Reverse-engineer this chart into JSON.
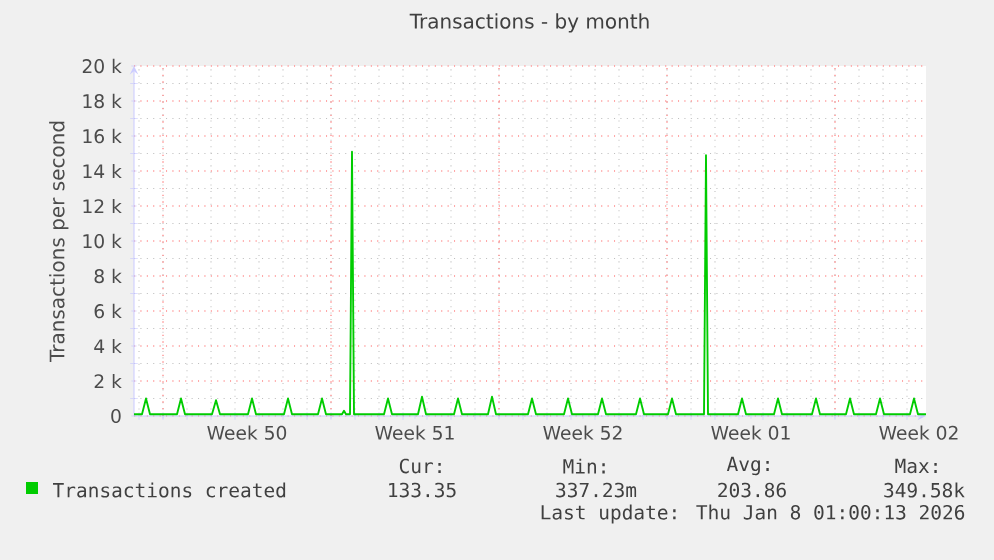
{
  "chart_data": {
    "type": "line",
    "title": "Transactions - by month",
    "ylabel": "Transactions per second",
    "xlim": [
      "2025-12-06T19:00",
      "2026-01-08T19:00"
    ],
    "xticks": [
      {
        "value": "2025-12-08",
        "label": null
      },
      {
        "value": "2025-12-11T12:00",
        "label": "Week 50"
      },
      {
        "value": "2025-12-15",
        "label": null
      },
      {
        "value": "2025-12-18T12:00",
        "label": "Week 51"
      },
      {
        "value": "2025-12-22",
        "label": null
      },
      {
        "value": "2025-12-25T12:00",
        "label": "Week 52"
      },
      {
        "value": "2025-12-29",
        "label": null
      },
      {
        "value": "2026-01-01T12:00",
        "label": "Week 01"
      },
      {
        "value": "2026-01-05",
        "label": null
      },
      {
        "value": "2026-01-08T12:00",
        "label": "Week 02"
      }
    ],
    "ylim": [
      0,
      20000
    ],
    "yticks": [
      0,
      {
        "value": 2000,
        "label": "2 k"
      },
      {
        "value": 4000,
        "label": "4 k"
      },
      {
        "value": 6000,
        "label": "6 k"
      },
      {
        "value": 8000,
        "label": "8 k"
      },
      {
        "value": 10000,
        "label": "10 k"
      },
      {
        "value": 12000,
        "label": "12 k"
      },
      {
        "value": 14000,
        "label": "14 k"
      },
      {
        "value": 16000,
        "label": "16 k"
      },
      {
        "value": 18000,
        "label": "18 k"
      },
      {
        "value": 20000,
        "label": "20 k"
      }
    ],
    "grid": true,
    "legend": "bottom",
    "series": [
      {
        "name": "Transactions created",
        "color": "#00cc00",
        "x": [
          "2025-12-06T19:00",
          "2025-12-07T03:00",
          "2025-12-07T07:00",
          "2025-12-07T11:00",
          "2025-12-08T14:00",
          "2025-12-08T18:00",
          "2025-12-08T22:00",
          "2025-12-10T01:00",
          "2025-12-10T05:00",
          "2025-12-10T09:00",
          "2025-12-11T13:00",
          "2025-12-11T17:00",
          "2025-12-11T21:00",
          "2025-12-13T01:00",
          "2025-12-13T05:00",
          "2025-12-13T09:00",
          "2025-12-14T11:00",
          "2025-12-14T15:00",
          "2025-12-14T19:00",
          "2025-12-15T11:00",
          "2025-12-15T13:00",
          "2025-12-15T15:00",
          "2025-12-15T19:00",
          "2025-12-15T21:00",
          "2025-12-15T23:00",
          "2025-12-17T05:00",
          "2025-12-17T09:00",
          "2025-12-17T13:00",
          "2025-12-18T15:00",
          "2025-12-18T19:00",
          "2025-12-18T23:00",
          "2025-12-20T03:00",
          "2025-12-20T07:00",
          "2025-12-20T11:00",
          "2025-12-21T13:00",
          "2025-12-21T17:00",
          "2025-12-21T21:00",
          "2025-12-23T05:00",
          "2025-12-23T09:00",
          "2025-12-23T13:00",
          "2025-12-24T17:00",
          "2025-12-24T21:00",
          "2025-12-25T01:00",
          "2025-12-26T03:00",
          "2025-12-26T07:00",
          "2025-12-26T11:00",
          "2025-12-27T17:00",
          "2025-12-27T21:00",
          "2025-12-28T01:00",
          "2025-12-29T01:00",
          "2025-12-29T05:00",
          "2025-12-29T09:00",
          "2025-12-30T13:00",
          "2025-12-30T15:00",
          "2025-12-30T17:00",
          "2025-12-31T23:00",
          "2026-01-01T03:00",
          "2026-01-01T07:00",
          "2026-01-02T11:00",
          "2026-01-02T15:00",
          "2026-01-02T19:00",
          "2026-01-04T01:00",
          "2026-01-04T05:00",
          "2026-01-04T09:00",
          "2026-01-05T11:00",
          "2026-01-05T15:00",
          "2026-01-05T19:00",
          "2026-01-06T17:00",
          "2026-01-06T21:00",
          "2026-01-07T01:00",
          "2026-01-08T03:00",
          "2026-01-08T07:00",
          "2026-01-08T11:00",
          "2026-01-08T19:00"
        ],
        "values": [
          100,
          100,
          1000,
          100,
          100,
          1000,
          100,
          100,
          900,
          100,
          100,
          1000,
          100,
          100,
          1000,
          100,
          100,
          1000,
          100,
          100,
          300,
          100,
          100,
          15100,
          100,
          100,
          1000,
          100,
          100,
          1100,
          100,
          100,
          1000,
          100,
          100,
          1100,
          100,
          100,
          1000,
          100,
          100,
          1000,
          100,
          100,
          1000,
          100,
          100,
          1000,
          100,
          100,
          1000,
          100,
          100,
          14900,
          100,
          100,
          1000,
          100,
          100,
          1000,
          100,
          100,
          1000,
          100,
          100,
          1000,
          100,
          100,
          1000,
          100,
          100,
          1000,
          100,
          100
        ]
      }
    ],
    "annotations": [
      "Cur:",
      "Min:",
      "Avg:",
      "Max:",
      "133.35",
      "337.23m",
      "203.86",
      "349.58k",
      "Last update: Thu Jan  8 01:00:13 2026"
    ]
  }
}
